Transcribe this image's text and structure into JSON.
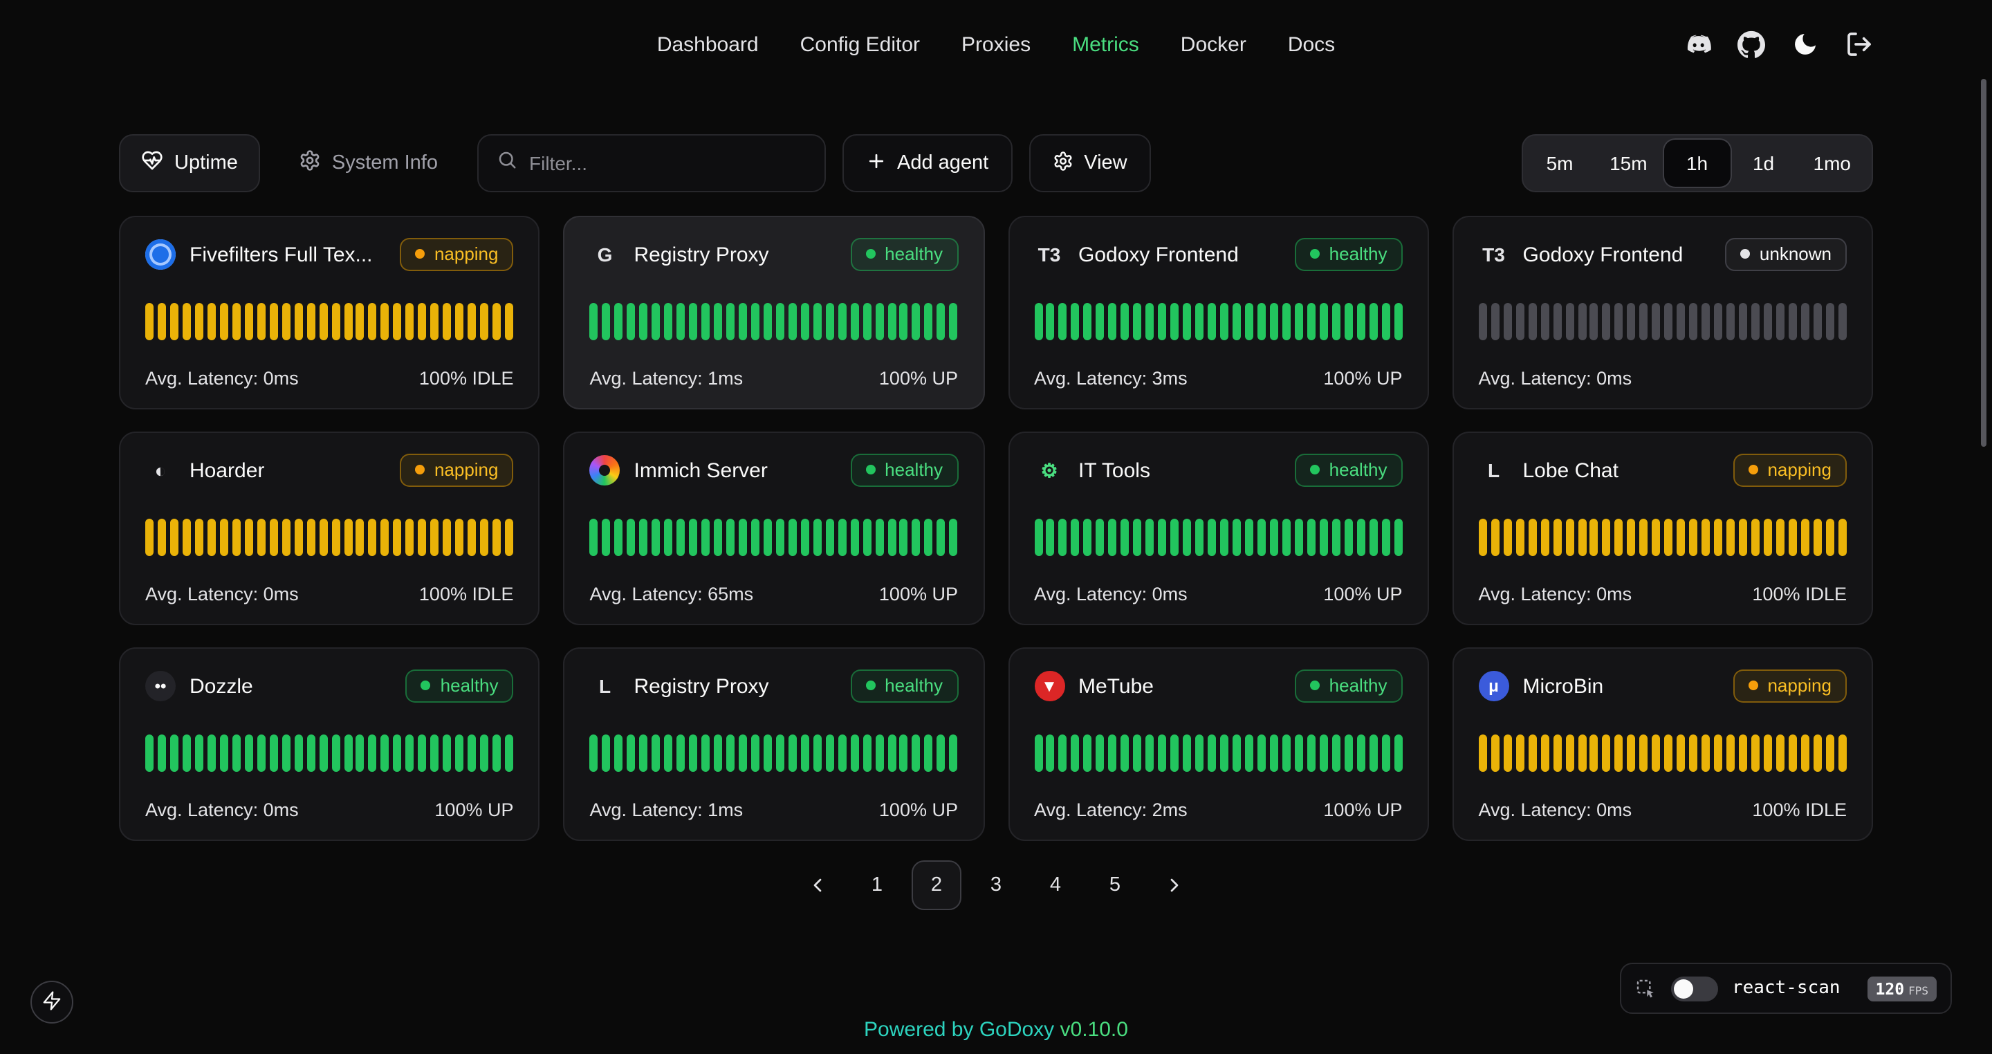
{
  "nav": {
    "items": [
      {
        "label": "Dashboard"
      },
      {
        "label": "Config Editor"
      },
      {
        "label": "Proxies"
      },
      {
        "label": "Metrics"
      },
      {
        "label": "Docker"
      },
      {
        "label": "Docs"
      }
    ],
    "active": "Metrics",
    "icon_names": [
      "discord-icon",
      "github-icon",
      "moon-icon",
      "logout-icon"
    ]
  },
  "toolbar": {
    "tabs": [
      {
        "label": "Uptime",
        "icon": "heart-pulse-icon",
        "active": true
      },
      {
        "label": "System Info",
        "icon": "gear-icon",
        "active": false
      }
    ],
    "filter_placeholder": "Filter...",
    "add_agent_label": "Add agent",
    "view_label": "View",
    "ranges": [
      "5m",
      "15m",
      "1h",
      "1d",
      "1mo"
    ],
    "active_range": "1h"
  },
  "uptime_bar_count": 30,
  "tones": {
    "green": {
      "bar": "#22c55e",
      "text": "#4ade80",
      "bg": "rgba(34,197,94,0.10)",
      "border": "rgba(34,197,94,0.45)",
      "dot": "#22c55e"
    },
    "amber": {
      "bar": "#eab308",
      "text": "#fbbf24",
      "bg": "rgba(234,179,8,0.10)",
      "border": "rgba(202,138,4,0.55)",
      "dot": "#f59e0b"
    },
    "gray": {
      "bar": "#4b4b52",
      "text": "#fafafa",
      "bg": "rgba(255,255,255,0.04)",
      "border": "#3f3f46",
      "dot": "#e4e4e7"
    }
  },
  "cards": [
    {
      "name": "Fivefilters Full Tex...",
      "status": "napping",
      "tone": "amber",
      "latency": "Avg. Latency: 0ms",
      "uptime": "100% IDLE",
      "highlight": false,
      "icon": {
        "type": "ring",
        "bg": "#1d6ee8",
        "ring": "#a5c8ff"
      }
    },
    {
      "name": "Registry Proxy",
      "status": "healthy",
      "tone": "green",
      "latency": "Avg. Latency: 1ms",
      "uptime": "100% UP",
      "highlight": true,
      "icon": {
        "type": "glyph",
        "glyph": "G",
        "color": "#e4e4e7"
      }
    },
    {
      "name": "Godoxy Frontend",
      "status": "healthy",
      "tone": "green",
      "latency": "Avg. Latency: 3ms",
      "uptime": "100% UP",
      "highlight": false,
      "icon": {
        "type": "glyph",
        "glyph": "T3",
        "color": "#e4e4e7"
      }
    },
    {
      "name": "Godoxy Frontend",
      "status": "unknown",
      "tone": "gray",
      "latency": "Avg. Latency: 0ms",
      "uptime": "",
      "highlight": false,
      "icon": {
        "type": "glyph",
        "glyph": "T3",
        "color": "#e4e4e7"
      }
    },
    {
      "name": "Hoarder",
      "status": "napping",
      "tone": "amber",
      "latency": "Avg. Latency: 0ms",
      "uptime": "100% IDLE",
      "highlight": false,
      "icon": {
        "type": "glyph",
        "glyph": "◐",
        "color": "#e4e4e7"
      }
    },
    {
      "name": "Immich Server",
      "status": "healthy",
      "tone": "green",
      "latency": "Avg. Latency: 65ms",
      "uptime": "100% UP",
      "highlight": false,
      "icon": {
        "type": "pinwheel"
      }
    },
    {
      "name": "IT Tools",
      "status": "healthy",
      "tone": "green",
      "latency": "Avg. Latency: 0ms",
      "uptime": "100% UP",
      "highlight": false,
      "icon": {
        "type": "glyph",
        "glyph": "⚙",
        "color": "#4ade80"
      }
    },
    {
      "name": "Lobe Chat",
      "status": "napping",
      "tone": "amber",
      "latency": "Avg. Latency: 0ms",
      "uptime": "100% IDLE",
      "highlight": false,
      "icon": {
        "type": "glyph",
        "glyph": "L",
        "color": "#e4e4e7"
      }
    },
    {
      "name": "Dozzle",
      "status": "healthy",
      "tone": "green",
      "latency": "Avg. Latency: 0ms",
      "uptime": "100% UP",
      "highlight": false,
      "icon": {
        "type": "badge",
        "bg": "#232328",
        "glyph": "••",
        "color": "#fafafa"
      }
    },
    {
      "name": "Registry Proxy",
      "status": "healthy",
      "tone": "green",
      "latency": "Avg. Latency: 1ms",
      "uptime": "100% UP",
      "highlight": false,
      "icon": {
        "type": "glyph",
        "glyph": "L",
        "color": "#e4e4e7"
      }
    },
    {
      "name": "MeTube",
      "status": "healthy",
      "tone": "green",
      "latency": "Avg. Latency: 2ms",
      "uptime": "100% UP",
      "highlight": false,
      "icon": {
        "type": "badge",
        "bg": "#dc2626",
        "glyph": "▼",
        "color": "#ffffff"
      }
    },
    {
      "name": "MicroBin",
      "status": "napping",
      "tone": "amber",
      "latency": "Avg. Latency: 0ms",
      "uptime": "100% IDLE",
      "highlight": false,
      "icon": {
        "type": "badge",
        "bg": "#3b5bdb",
        "glyph": "μ",
        "color": "#ffffff"
      }
    }
  ],
  "pagination": {
    "pages": [
      "1",
      "2",
      "3",
      "4",
      "5"
    ],
    "active": "2"
  },
  "footer": {
    "powered_by": "Powered by",
    "brand": "GoDoxy",
    "version": "v0.10.0"
  },
  "react_scan": {
    "label": "react-scan",
    "fps_value": "120",
    "fps_unit": "FPS"
  }
}
